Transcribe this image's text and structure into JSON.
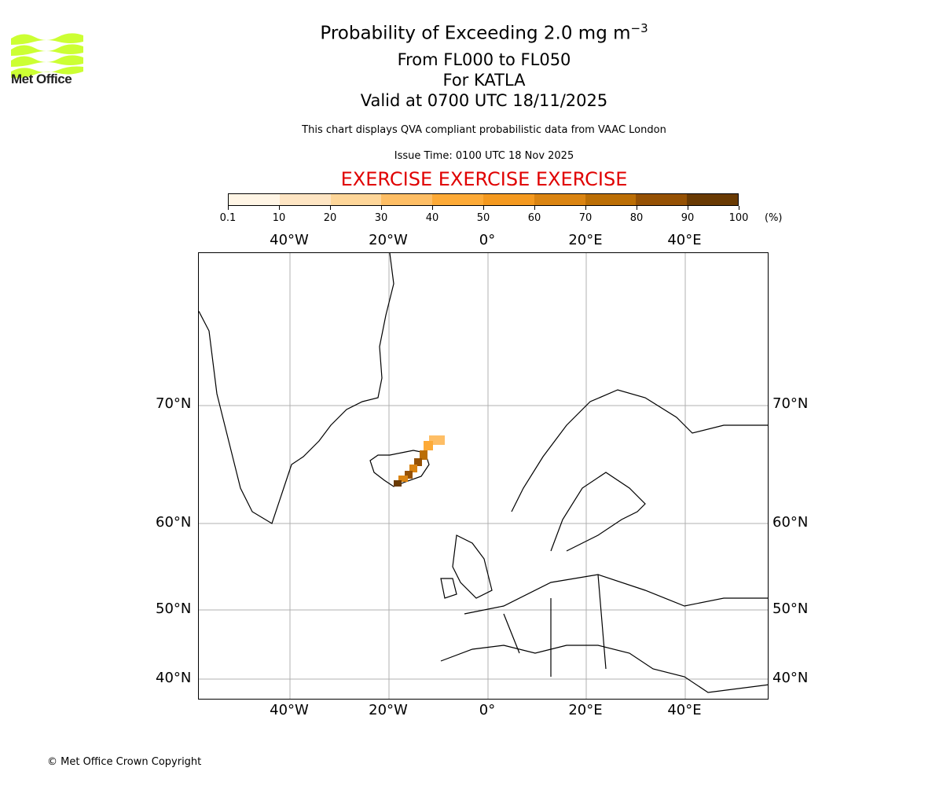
{
  "logo": {
    "text": "Met Office",
    "color": "#ccff33"
  },
  "titles": {
    "line1_main": "Probability of Exceeding 2.0 mg m",
    "line1_sup": "−3",
    "line2": "From FL000 to FL050",
    "line3": "For KATLA",
    "line4": "Valid at 0700 UTC 18/11/2025"
  },
  "subtitle": "This chart displays QVA compliant probabilistic data from VAAC London",
  "issue_time": "Issue Time: 0100 UTC 18 Nov 2025",
  "exercise_banner": "EXERCISE EXERCISE EXERCISE",
  "colorbar": {
    "unit": "(%)",
    "ticks": [
      "0.1",
      "10",
      "20",
      "30",
      "40",
      "50",
      "60",
      "70",
      "80",
      "90",
      "100"
    ],
    "colors": [
      "#fff5e5",
      "#fee5c3",
      "#fed699",
      "#febe65",
      "#fdaa37",
      "#f4991f",
      "#da8412",
      "#bb6e05",
      "#955104",
      "#693a03"
    ]
  },
  "map": {
    "lon_labels": [
      "40°W",
      "20°W",
      "0°",
      "20°E",
      "40°E"
    ],
    "lat_labels": [
      "70°N",
      "60°N",
      "50°N",
      "40°N"
    ],
    "volcano": "KATLA"
  },
  "copyright": "© Met Office Crown Copyright",
  "chart_data": {
    "type": "heatmap",
    "title": "Probability of Exceeding 2.0 mg m-3, From FL000 to FL050, For KATLA, Valid at 0700 UTC 18/11/2025",
    "colorbar_label": "(%)",
    "colorbar_bounds": [
      0.1,
      10,
      20,
      30,
      40,
      50,
      60,
      70,
      80,
      90,
      100
    ],
    "x_ticks": [
      "40°W",
      "20°W",
      "0°",
      "20°E",
      "40°E"
    ],
    "y_ticks": [
      "70°N",
      "60°N",
      "50°N",
      "40°N"
    ],
    "grid": true,
    "plume_description": "Ash plume extends NE from Katla (southern Iceland ~63.6N 19W) to ~67N 10W; highest probabilities (80-100%) near source along SE Iceland coast, decreasing to 10-40% at NE tip"
  }
}
